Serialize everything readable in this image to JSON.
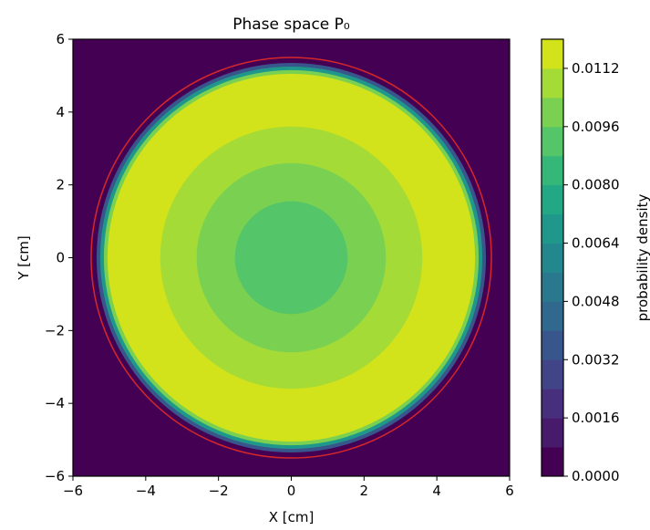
{
  "chart_data": {
    "type": "heatmap",
    "subtype": "filled-contour",
    "title": "Phase space P₀",
    "xlabel": "X [cm]",
    "ylabel": "Y [cm]",
    "xlim": [
      -6,
      6
    ],
    "ylim": [
      -6,
      6
    ],
    "xticks": [
      -6,
      -4,
      -2,
      0,
      2,
      4,
      6
    ],
    "yticks": [
      -6,
      -4,
      -2,
      0,
      2,
      4,
      6
    ],
    "grid": false,
    "colormap": "viridis",
    "colorbar": {
      "label": "probability density",
      "range": [
        0.0,
        0.012
      ],
      "levels": [
        0.0,
        0.0008,
        0.0016,
        0.0024,
        0.0032,
        0.004,
        0.0048,
        0.0056,
        0.0064,
        0.0072,
        0.008,
        0.0088,
        0.0096,
        0.0104,
        0.0112,
        0.012
      ],
      "ticks": [
        0.0,
        0.0016,
        0.0032,
        0.0048,
        0.0064,
        0.008,
        0.0096,
        0.0112
      ],
      "tick_labels": [
        "0.0000",
        "0.0016",
        "0.0032",
        "0.0048",
        "0.0064",
        "0.0080",
        "0.0096",
        "0.0112"
      ],
      "colors": [
        "#440154",
        "#481a6c",
        "#472f7d",
        "#414487",
        "#39568c",
        "#31688e",
        "#2a788e",
        "#23888e",
        "#1f988b",
        "#22a884",
        "#35b779",
        "#54c568",
        "#7ad151",
        "#a5db36",
        "#d2e21b",
        "#e8e419"
      ]
    },
    "regions": [
      {
        "shape": "disk",
        "center": [
          0,
          0
        ],
        "radius": 5.45,
        "value": 0.0006
      },
      {
        "shape": "disk",
        "center": [
          0,
          0
        ],
        "radius": 5.35,
        "value": 0.0034
      },
      {
        "shape": "disk",
        "center": [
          0,
          0
        ],
        "radius": 5.25,
        "value": 0.0066
      },
      {
        "shape": "disk",
        "center": [
          0,
          0
        ],
        "radius": 5.15,
        "value": 0.0098
      },
      {
        "shape": "disk",
        "center": [
          0,
          0
        ],
        "radius": 5.05,
        "value": 0.0114
      },
      {
        "shape": "disk",
        "center": [
          0,
          0
        ],
        "radius": 3.6,
        "value": 0.0106
      },
      {
        "shape": "disk",
        "center": [
          0,
          0
        ],
        "radius": 2.6,
        "value": 0.0099
      },
      {
        "shape": "disk",
        "center": [
          0,
          0
        ],
        "radius": 1.55,
        "value": 0.0093
      }
    ],
    "annotations": [
      {
        "type": "circle",
        "center": [
          0,
          0
        ],
        "radius": 5.5,
        "color": "#d62728"
      }
    ]
  }
}
